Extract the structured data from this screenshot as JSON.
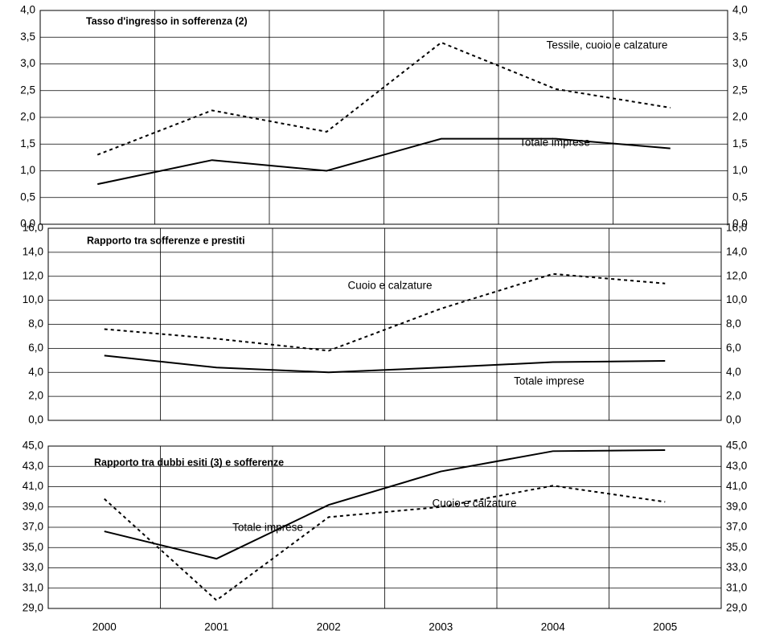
{
  "chart_data": [
    {
      "type": "line",
      "title": "Tasso d'ingresso in sofferenza (2)",
      "ylim": [
        0,
        4
      ],
      "yticks": [
        {
          "value": 0,
          "label": "0,0"
        },
        {
          "value": 0.5,
          "label": "0,5"
        },
        {
          "value": 1,
          "label": "1,0"
        },
        {
          "value": 1.5,
          "label": "1,5"
        },
        {
          "value": 2,
          "label": "2,0"
        },
        {
          "value": 2.5,
          "label": "2,5"
        },
        {
          "value": 3,
          "label": "3,0"
        },
        {
          "value": 3.5,
          "label": "3,5"
        },
        {
          "value": 4,
          "label": "4,0"
        }
      ],
      "grid": true,
      "series": [
        {
          "name": "Tessile, cuoio e calzature",
          "color": "#000000",
          "style": "dashed",
          "values": [
            1.3,
            2.13,
            1.73,
            3.4,
            2.53,
            2.18
          ]
        },
        {
          "name": "Totale imprese",
          "color": "#000000",
          "style": "solid",
          "values": [
            0.75,
            1.2,
            1.0,
            1.6,
            1.6,
            1.42
          ]
        }
      ]
    },
    {
      "type": "line",
      "title": "Rapporto tra sofferenze e prestiti",
      "ylim": [
        0,
        16
      ],
      "yticks": [
        {
          "value": 0,
          "label": "0,0"
        },
        {
          "value": 2,
          "label": "2,0"
        },
        {
          "value": 4,
          "label": "4,0"
        },
        {
          "value": 6,
          "label": "6,0"
        },
        {
          "value": 8,
          "label": "8,0"
        },
        {
          "value": 10,
          "label": "10,0"
        },
        {
          "value": 12,
          "label": "12,0"
        },
        {
          "value": 14,
          "label": "14,0"
        },
        {
          "value": 16,
          "label": "16,0"
        }
      ],
      "grid": true,
      "series": [
        {
          "name": "Cuoio e calzature",
          "color": "#000000",
          "style": "dashed",
          "values": [
            7.6,
            6.8,
            5.8,
            9.3,
            12.2,
            11.4
          ]
        },
        {
          "name": "Totale imprese",
          "color": "#000000",
          "style": "solid",
          "values": [
            5.4,
            4.4,
            4.0,
            4.4,
            4.85,
            4.95
          ]
        }
      ]
    },
    {
      "type": "line",
      "title": "Rapporto tra dubbi esiti (3) e sofferenze",
      "categories": [
        "2000",
        "2001",
        "2002",
        "2003",
        "2004",
        "2005"
      ],
      "ylim": [
        29,
        45
      ],
      "yticks": [
        {
          "value": 29,
          "label": "29,0"
        },
        {
          "value": 31,
          "label": "31,0"
        },
        {
          "value": 33,
          "label": "33,0"
        },
        {
          "value": 35,
          "label": "35,0"
        },
        {
          "value": 37,
          "label": "37,0"
        },
        {
          "value": 39,
          "label": "39,0"
        },
        {
          "value": 41,
          "label": "41,0"
        },
        {
          "value": 43,
          "label": "43,0"
        },
        {
          "value": 45,
          "label": "45,0"
        }
      ],
      "grid": true,
      "series": [
        {
          "name": "Totale imprese",
          "color": "#000000",
          "style": "solid",
          "values": [
            36.6,
            33.9,
            39.2,
            42.5,
            44.5,
            44.6
          ]
        },
        {
          "name": "Cuoio e calzature",
          "color": "#000000",
          "style": "dashed",
          "values": [
            39.8,
            29.8,
            38.0,
            39.0,
            41.1,
            39.5
          ]
        }
      ]
    }
  ]
}
